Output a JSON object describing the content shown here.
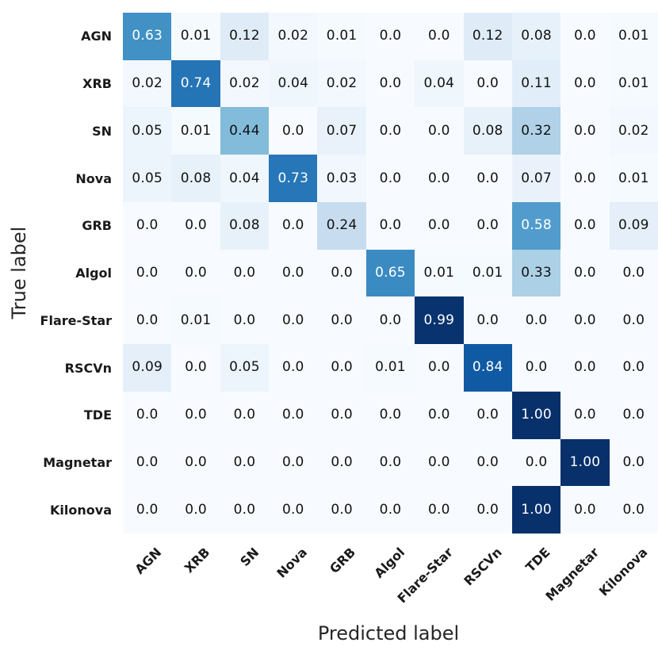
{
  "chart_data": {
    "type": "heatmap",
    "title": "",
    "xlabel": "Predicted label",
    "ylabel": "True label",
    "categories": [
      "AGN",
      "XRB",
      "SN",
      "Nova",
      "GRB",
      "Algol",
      "Flare-Star",
      "RSCVn",
      "TDE",
      "Magnetar",
      "Kilonova"
    ],
    "matrix": [
      [
        0.63,
        0.01,
        0.12,
        0.02,
        0.01,
        0.0,
        0.0,
        0.12,
        0.08,
        0.0,
        0.01
      ],
      [
        0.02,
        0.74,
        0.02,
        0.04,
        0.02,
        0.0,
        0.04,
        0.0,
        0.11,
        0.0,
        0.01
      ],
      [
        0.05,
        0.01,
        0.44,
        0.0,
        0.07,
        0.0,
        0.0,
        0.08,
        0.32,
        0.0,
        0.02
      ],
      [
        0.05,
        0.08,
        0.04,
        0.73,
        0.03,
        0.0,
        0.0,
        0.0,
        0.07,
        0.0,
        0.01
      ],
      [
        0.0,
        0.0,
        0.08,
        0.0,
        0.24,
        0.0,
        0.0,
        0.0,
        0.58,
        0.0,
        0.09
      ],
      [
        0.0,
        0.0,
        0.0,
        0.0,
        0.0,
        0.65,
        0.01,
        0.01,
        0.33,
        0.0,
        0.0
      ],
      [
        0.0,
        0.01,
        0.0,
        0.0,
        0.0,
        0.0,
        0.99,
        0.0,
        0.0,
        0.0,
        0.0
      ],
      [
        0.09,
        0.0,
        0.05,
        0.0,
        0.0,
        0.01,
        0.0,
        0.84,
        0.0,
        0.0,
        0.0
      ],
      [
        0.0,
        0.0,
        0.0,
        0.0,
        0.0,
        0.0,
        0.0,
        0.0,
        1.0,
        0.0,
        0.0
      ],
      [
        0.0,
        0.0,
        0.0,
        0.0,
        0.0,
        0.0,
        0.0,
        0.0,
        0.0,
        1.0,
        0.0
      ],
      [
        0.0,
        0.0,
        0.0,
        0.0,
        0.0,
        0.0,
        0.0,
        0.0,
        1.0,
        0.0,
        0.0
      ]
    ],
    "colormap": "Blues",
    "vmin": 0,
    "vmax": 1,
    "zero_display": "0.0",
    "text_threshold": 0.5,
    "grid": false,
    "legend": "none",
    "colors": {
      "cmap_low": "#f7fbff",
      "cmap_high": "#08306b",
      "cell_text_dark": "#121212",
      "cell_text_light": "#ffffff",
      "tick_label": "#1a1a1a",
      "axis_label": "#262626",
      "background": "#ffffff"
    }
  }
}
